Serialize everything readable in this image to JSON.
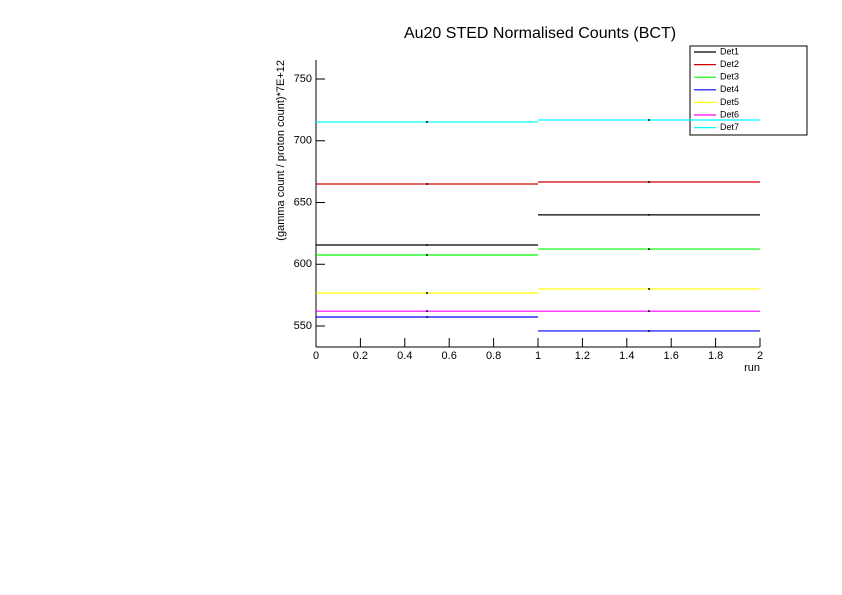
{
  "chart_data": {
    "type": "histogram",
    "title": "Au20 STED Normalised Counts (BCT)",
    "x_label": "run",
    "y_label": "(gamma count / proton count)*7E+12",
    "bins": [
      0,
      1,
      2
    ],
    "series": [
      {
        "name": "Det1",
        "color": "#000000",
        "values": [
          615.6,
          640
        ]
      },
      {
        "name": "Det2",
        "color": "#d00000",
        "values": [
          665,
          666.6
        ]
      },
      {
        "name": "Det3",
        "color": "#00ff00",
        "values": [
          607.5,
          612.3
        ]
      },
      {
        "name": "Det4",
        "color": "#0000ff",
        "values": [
          557.3,
          546
        ]
      },
      {
        "name": "Det5",
        "color": "#ffff00",
        "values": [
          576.7,
          580
        ]
      },
      {
        "name": "Det6",
        "color": "#ff00ff",
        "values": [
          562,
          562
        ]
      },
      {
        "name": "Det7",
        "color": "#00ffff",
        "values": [
          715.2,
          716.8
        ]
      }
    ],
    "xlim": [
      0,
      2
    ],
    "xticks": [
      0,
      0.2,
      0.4,
      0.6,
      0.8,
      1,
      1.2,
      1.4,
      1.6,
      1.8,
      2
    ],
    "ylim": [
      533,
      765.4
    ],
    "yticks": [
      550,
      600,
      650,
      700,
      750
    ],
    "legend": "top-right"
  }
}
